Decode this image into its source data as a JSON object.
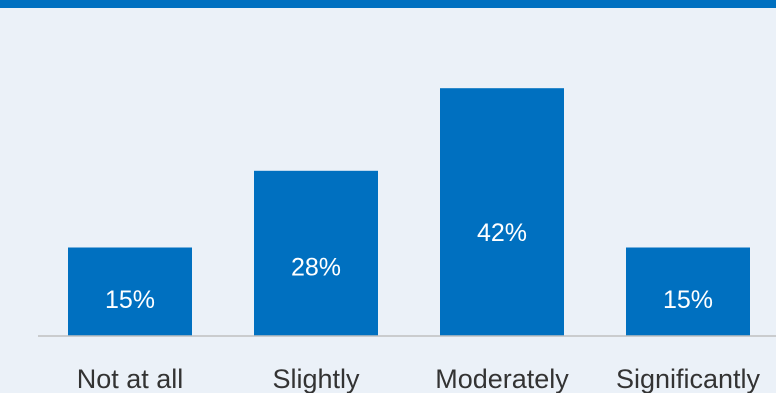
{
  "colors": {
    "accent": "#0070c0",
    "background": "#ebf1f8",
    "axis": "#bfbfbf",
    "label_text": "#333333",
    "bar_text": "#ffffff"
  },
  "chart_data": {
    "type": "bar",
    "categories": [
      "Not at all",
      "Slightly",
      "Moderately",
      "Significantly"
    ],
    "values": [
      15,
      28,
      42,
      15
    ],
    "value_labels": [
      "15%",
      "28%",
      "42%",
      "15%"
    ],
    "unit": "%",
    "title": "",
    "xlabel": "",
    "ylabel": "",
    "ylim": [
      0,
      50
    ],
    "grid": false,
    "legend": "none"
  }
}
